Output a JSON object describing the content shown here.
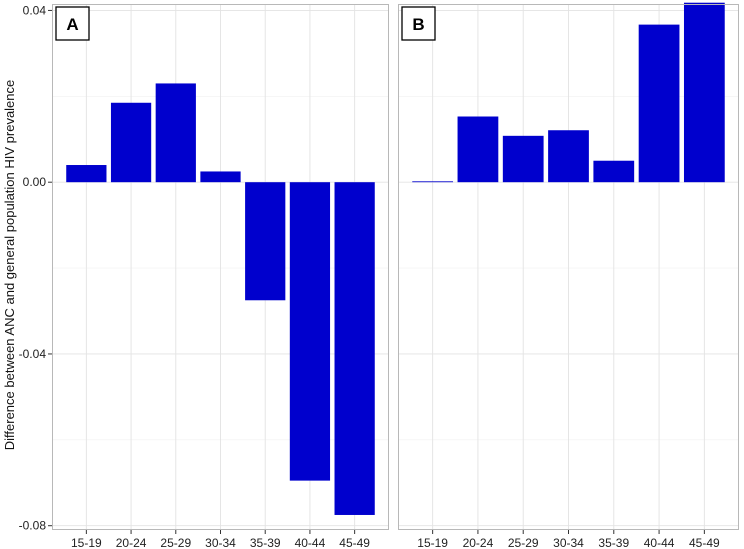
{
  "chart_data": {
    "type": "bar",
    "ylabel": "Difference between ANC and general population HIV prevalence",
    "categories": [
      "15-19",
      "20-24",
      "25-29",
      "30-34",
      "35-39",
      "40-44",
      "45-49"
    ],
    "ylim": [
      -0.081,
      0.0415
    ],
    "yticks": [
      0.04,
      0.0,
      -0.04,
      -0.08
    ],
    "ytick_labels": [
      "0.04",
      "0.00",
      "-0.04",
      "-0.08"
    ],
    "bar_color": "#0000CD",
    "grid": true,
    "panels": [
      {
        "label": "A",
        "values": [
          0.004,
          0.0185,
          0.023,
          0.0025,
          -0.0275,
          -0.0695,
          -0.0775
        ]
      },
      {
        "label": "B",
        "values": [
          0.0002,
          0.0153,
          0.0108,
          0.0121,
          0.005,
          0.0367,
          0.0418
        ]
      }
    ]
  }
}
